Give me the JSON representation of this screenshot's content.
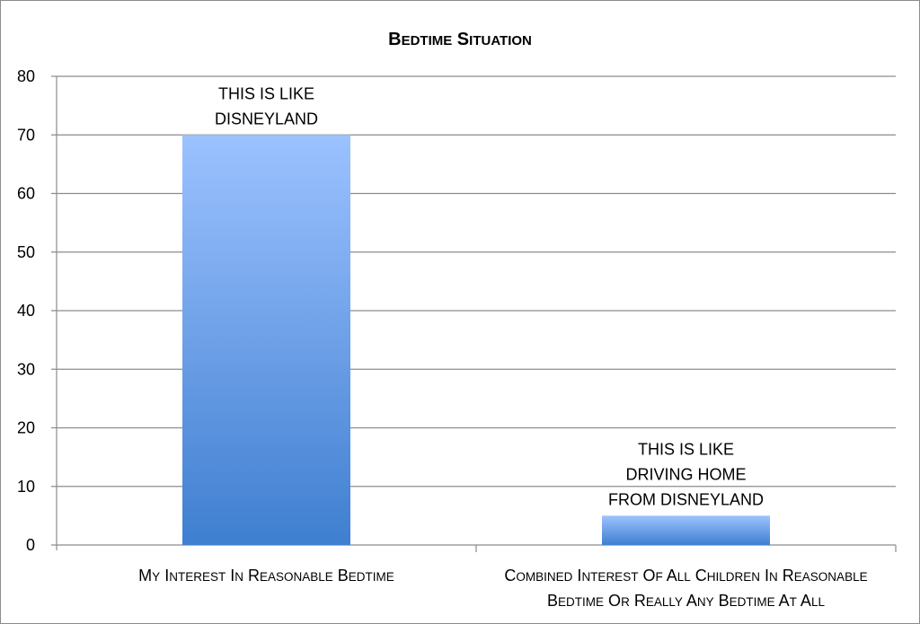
{
  "chart_data": {
    "type": "bar",
    "title": "Bedtime Situation",
    "categories": [
      "My interest in reasonable bedtime",
      "Combined interest of all children in reasonable bedtime or really any bedtime at all"
    ],
    "category_label_lines": [
      [
        "My interest in reasonable bedtime"
      ],
      [
        "Combined interest of all children in reasonable",
        "bedtime or really any bedtime at all"
      ]
    ],
    "values": [
      70,
      5
    ],
    "annotations": [
      [
        "THIS IS LIKE",
        "DISNEYLAND"
      ],
      [
        "THIS IS LIKE",
        "DRIVING HOME",
        "FROM DISNEYLAND"
      ]
    ],
    "ylim": [
      0,
      80
    ],
    "yticks": [
      0,
      10,
      20,
      30,
      40,
      50,
      60,
      70,
      80
    ],
    "xlabel": "",
    "ylabel": "",
    "grid": true,
    "legend": "none",
    "colors": {
      "bar_top": "#9cc2ff",
      "bar_bottom": "#3f7fd0",
      "grid": "#8c8c8c"
    }
  }
}
